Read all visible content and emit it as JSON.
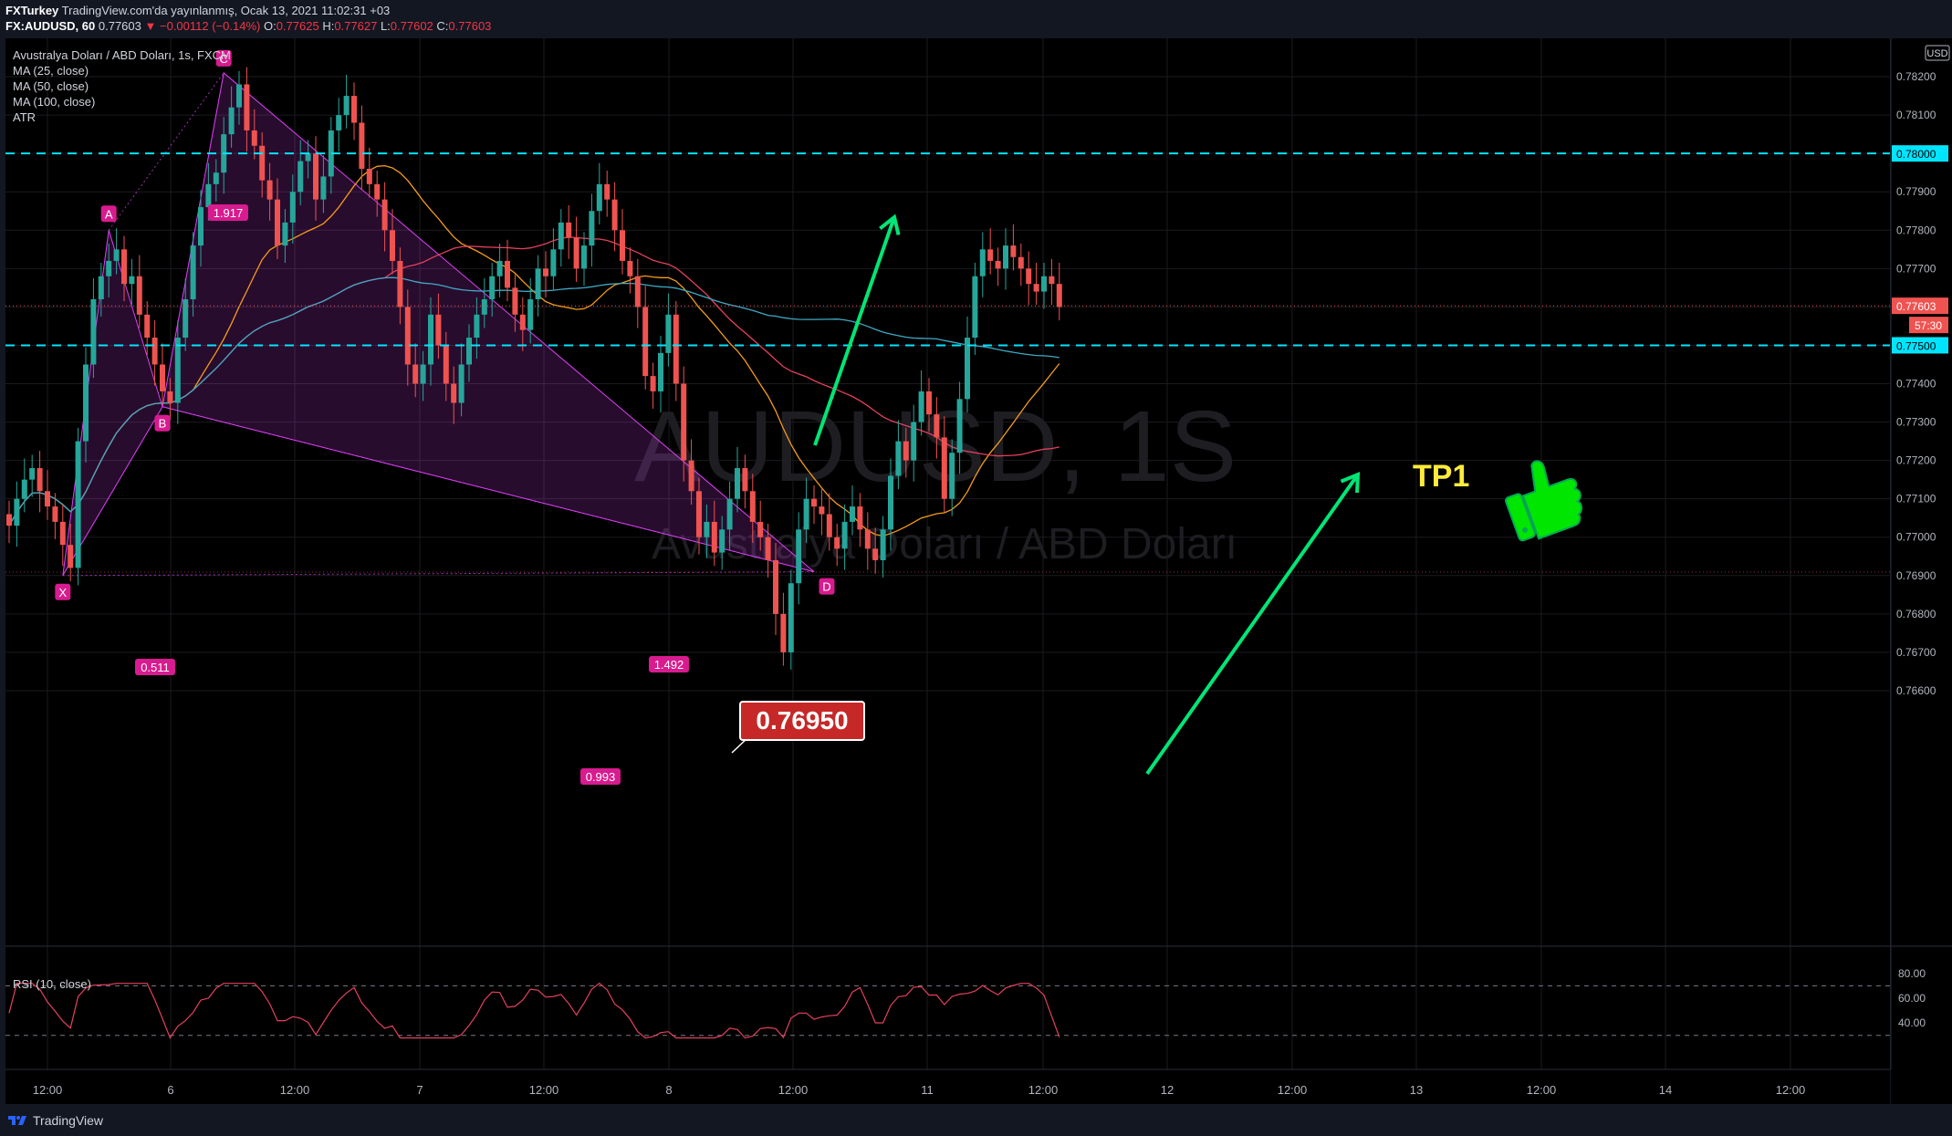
{
  "header": {
    "author": "FXTurkey",
    "published": "TradingView.com'da yayınlanmış, Ocak 13, 2021 11:02:31 +03",
    "symbol": "FX:AUDUSD, 60",
    "last": "0.77603",
    "change": "−0.00112 (−0.14%)",
    "o_label": "O:",
    "o": "0.77625",
    "h_label": "H:",
    "h": "0.77627",
    "l_label": "L:",
    "l": "0.77602",
    "c_label": "C:",
    "c": "0.77603"
  },
  "legend": {
    "title": "Avustralya Doları / ABD Doları, 1s, FXCM",
    "ma25": "MA (25, close)",
    "ma50": "MA (50, close)",
    "ma100": "MA (100, close)",
    "atr": "ATR",
    "rsi": "RSI (10, close)"
  },
  "watermark": {
    "big": "AUDUSD, 1S",
    "small": "Avustralya Doları / ABD Doları"
  },
  "price_axis": {
    "currency": "USD",
    "current_price": "0.77603",
    "countdown": "57:30"
  },
  "footer": {
    "brand": "TradingView"
  },
  "annotations": {
    "price_callout": "0.76950",
    "tp_label": "TP1",
    "pattern_points": [
      "X",
      "A",
      "B",
      "C",
      "D"
    ],
    "ratios": [
      "1.917",
      "0.511",
      "1.492",
      "0.993"
    ]
  },
  "colors": {
    "up": "#26a69a",
    "down": "#ef5350",
    "pattern": "#e040fb",
    "level_line": "#00e5ff",
    "arrow": "#00e676",
    "ma25": "#f59c1a",
    "ma50": "#e5405e",
    "ma100": "#3fa9c5"
  },
  "chart_data": {
    "type": "candlestick",
    "symbol": "AUDUSD",
    "timeframe": "1h",
    "ylim": [
      0.7655,
      0.783
    ],
    "y_ticks": [
      "0.78200",
      "0.78100",
      "0.78000",
      "0.77900",
      "0.77800",
      "0.77700",
      "0.77600",
      "0.77500",
      "0.77400",
      "0.77300",
      "0.77200",
      "0.77100",
      "0.77000",
      "0.76900",
      "0.76800",
      "0.76700",
      "0.76600"
    ],
    "x_ticks": [
      "12:00",
      "6",
      "12:00",
      "7",
      "12:00",
      "8",
      "12:00",
      "11",
      "12:00",
      "12",
      "12:00",
      "13",
      "12:00",
      "14",
      "12:00"
    ],
    "horizontal_levels": [
      0.78,
      0.775
    ],
    "harmonic_pattern": {
      "points": {
        "X": 0.769,
        "A": 0.778,
        "B": 0.7734,
        "C": 0.7821,
        "D": 0.7691
      },
      "ratios": {
        "XB": 0.511,
        "AC": 1.917,
        "BD": 1.492,
        "XD": 0.993
      }
    },
    "targets": {
      "entry": 0.7695,
      "tp1": 0.775,
      "upper_target": 0.78
    },
    "closes": [
      0.7703,
      0.771,
      0.7715,
      0.7718,
      0.7712,
      0.7708,
      0.7704,
      0.7698,
      0.7692,
      0.7725,
      0.7745,
      0.7762,
      0.7768,
      0.7772,
      0.7775,
      0.7766,
      0.7768,
      0.7758,
      0.7752,
      0.7745,
      0.7738,
      0.7735,
      0.7752,
      0.7762,
      0.7776,
      0.7786,
      0.7792,
      0.7795,
      0.7805,
      0.7812,
      0.7818,
      0.7806,
      0.7802,
      0.7793,
      0.7788,
      0.7776,
      0.7782,
      0.779,
      0.7798,
      0.78,
      0.7788,
      0.7794,
      0.7806,
      0.781,
      0.7815,
      0.7808,
      0.7796,
      0.7792,
      0.7788,
      0.778,
      0.7772,
      0.776,
      0.7745,
      0.774,
      0.7745,
      0.7758,
      0.775,
      0.774,
      0.7735,
      0.7745,
      0.7752,
      0.7758,
      0.7762,
      0.7768,
      0.7772,
      0.7765,
      0.7758,
      0.7754,
      0.7762,
      0.777,
      0.7768,
      0.7775,
      0.7782,
      0.7778,
      0.777,
      0.7776,
      0.7785,
      0.7792,
      0.7788,
      0.778,
      0.7772,
      0.7768,
      0.776,
      0.7742,
      0.7738,
      0.7748,
      0.7758,
      0.774,
      0.772,
      0.7712,
      0.77,
      0.7704,
      0.7696,
      0.7702,
      0.771,
      0.7718,
      0.7712,
      0.7704,
      0.77,
      0.7694,
      0.768,
      0.767,
      0.7688,
      0.7702,
      0.771,
      0.7708,
      0.7706,
      0.77,
      0.7697,
      0.7704,
      0.7708,
      0.7702,
      0.7697,
      0.7694,
      0.7702,
      0.7716,
      0.7725,
      0.772,
      0.773,
      0.7738,
      0.7732,
      0.7726,
      0.771,
      0.7722,
      0.7736,
      0.7752,
      0.7768,
      0.7775,
      0.7772,
      0.777,
      0.7776,
      0.7773,
      0.777,
      0.7766,
      0.7764,
      0.7768,
      0.7766,
      0.776
    ]
  }
}
